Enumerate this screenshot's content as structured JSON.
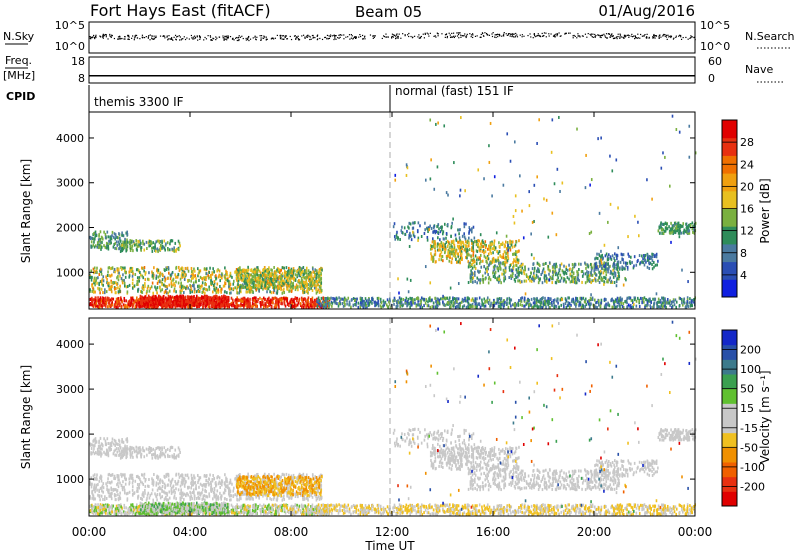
{
  "header": {
    "station": "Fort Hays East (fitACF)",
    "beam": "Beam 05",
    "date": "01/Aug/2016"
  },
  "chart_data": [
    {
      "type": "scatter",
      "panel": "noise",
      "left_label": "N.Sky",
      "right_label": "N.Search",
      "left_ticks": [
        "10^5",
        "10^0"
      ],
      "right_ticks": [
        "10^5",
        "10^0"
      ],
      "scale": "log"
    },
    {
      "type": "line",
      "panel": "frequency",
      "left_label_lines": [
        "Freq.",
        "[MHz]"
      ],
      "right_label": "Nave",
      "left_ticks": [
        "18",
        "8"
      ],
      "right_ticks": [
        "60",
        "0"
      ],
      "freq_value_mhz": 10.8
    },
    {
      "type": "table",
      "panel": "cpid",
      "label": "CPID",
      "segments": [
        {
          "start_hour": 0,
          "end_hour": 12,
          "text": "themis 3300 IF"
        },
        {
          "start_hour": 12,
          "end_hour": 24,
          "text": "normal (fast) 151 IF"
        }
      ]
    },
    {
      "type": "heatmap",
      "panel": "power",
      "ylabel": "Slant Range [km]",
      "ylim": [
        180,
        4580
      ],
      "yticks": [
        "1000",
        "2000",
        "3000",
        "4000"
      ],
      "colorbar": {
        "label": "Power [dB]",
        "ticks": [
          "4",
          "8",
          "12",
          "16",
          "20",
          "24",
          "28"
        ],
        "colors": [
          "#1020e0",
          "#2a4eb4",
          "#4a7aa0",
          "#2e8c5a",
          "#7ab040",
          "#e8c020",
          "#f0a010",
          "#f07000",
          "#e83010",
          "#e00000"
        ]
      }
    },
    {
      "type": "heatmap",
      "panel": "velocity",
      "ylabel": "Slant Range [km]",
      "ylim": [
        180,
        4580
      ],
      "yticks": [
        "1000",
        "2000",
        "3000",
        "4000"
      ],
      "xlabel": "Time UT",
      "xticks": [
        "00:00",
        "04:00",
        "08:00",
        "12:00",
        "16:00",
        "20:00",
        "00:00"
      ],
      "colorbar": {
        "label": "Velocity [m s⁻¹]",
        "ticks": [
          "200",
          "100",
          "50",
          "15",
          "-15",
          "-50",
          "-100",
          "-200"
        ],
        "colors": [
          "#1428c8",
          "#2850a8",
          "#3c7a8c",
          "#3aa050",
          "#60c030",
          "#c8c8c8",
          "#c8c8c8",
          "#f0c020",
          "#f09000",
          "#f06000",
          "#e83010",
          "#e00000"
        ]
      }
    }
  ]
}
